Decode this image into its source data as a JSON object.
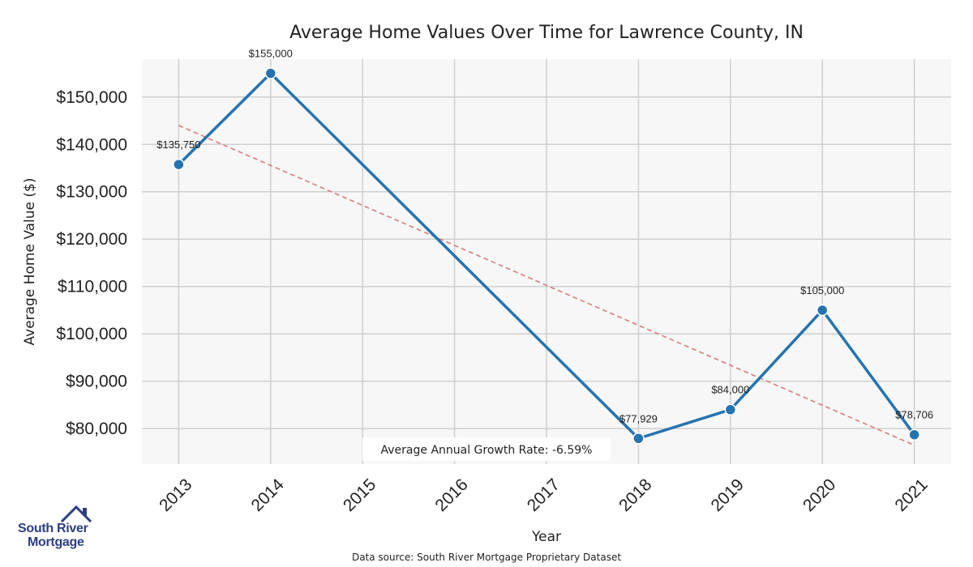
{
  "chart_data": {
    "type": "line",
    "title": "Average Home Values Over Time for Lawrence County, IN",
    "xlabel": "Year",
    "ylabel": "Average Home Value ($)",
    "categories": [
      "2013",
      "2014",
      "2015",
      "2016",
      "2017",
      "2018",
      "2019",
      "2020",
      "2021"
    ],
    "series": [
      {
        "name": "Average Home Value",
        "color": "#2474b2",
        "points": [
          {
            "x": 2013,
            "y": 135750,
            "label": "$135,750"
          },
          {
            "x": 2014,
            "y": 155000,
            "label": "$155,000"
          },
          {
            "x": 2018,
            "y": 77929,
            "label": "$77,929"
          },
          {
            "x": 2019,
            "y": 84000,
            "label": "$84,000"
          },
          {
            "x": 2020,
            "y": 105000,
            "label": "$105,000"
          },
          {
            "x": 2021,
            "y": 78706,
            "label": "$78,706"
          }
        ]
      }
    ],
    "trendline": {
      "color": "#d87c7c",
      "start": {
        "x": 2013,
        "y": 144000
      },
      "end": {
        "x": 2021,
        "y": 76500
      }
    },
    "xlim": [
      2012.6,
      2021.4
    ],
    "ylim": [
      72500,
      158000
    ],
    "yticks": [
      {
        "value": 80000,
        "label": "$80,000"
      },
      {
        "value": 90000,
        "label": "$90,000"
      },
      {
        "value": 100000,
        "label": "$100,000"
      },
      {
        "value": 110000,
        "label": "$110,000"
      },
      {
        "value": 120000,
        "label": "$120,000"
      },
      {
        "value": 130000,
        "label": "$130,000"
      },
      {
        "value": 140000,
        "label": "$140,000"
      },
      {
        "value": 150000,
        "label": "$150,000"
      }
    ],
    "grid": true,
    "annotation": "Average Annual Growth Rate: -6.59%"
  },
  "footer": {
    "source": "Data source: South River Mortgage Proprietary Dataset"
  },
  "brand": {
    "line1": "South River",
    "line2": "Mortgage",
    "color": "#2b3f82"
  }
}
